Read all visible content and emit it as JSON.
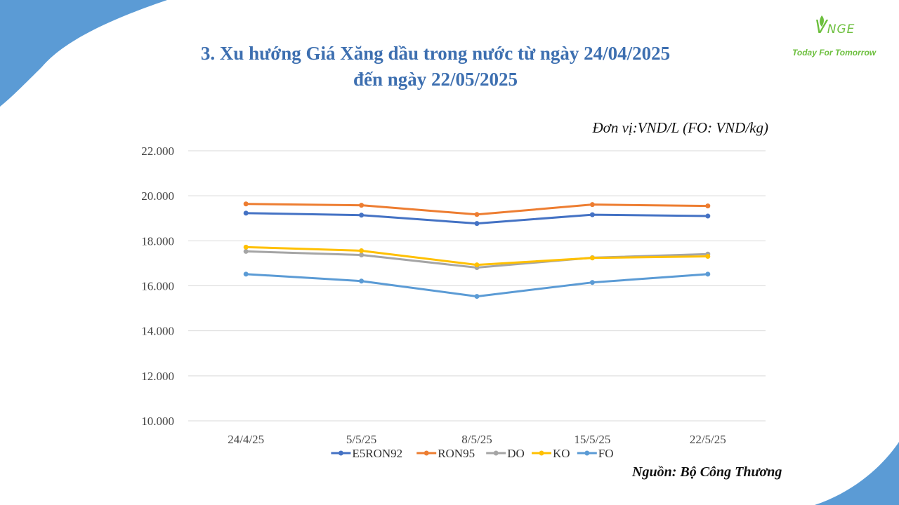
{
  "title_line1": "3. Xu hướng Giá Xăng dầu trong nước từ ngày 24/04/2025",
  "title_line2": "đến ngày 22/05/2025",
  "logo": {
    "brand_v": "V",
    "brand_rest": "NGE",
    "tagline": "Today For Tomorrow"
  },
  "unit_label": "Đơn vị:VND/L (FO: VND/kg)",
  "source_label": "Nguồn: Bộ Công Thương",
  "colors": {
    "title": "#3d6fb0",
    "deco_blue": "#5b9bd5",
    "brand_green": "#6cbf3d",
    "grid": "#d9d9d9"
  },
  "chart_data": {
    "type": "line",
    "categories": [
      "24/4/25",
      "5/5/25",
      "8/5/25",
      "15/5/25",
      "22/5/25"
    ],
    "ylim": [
      10000,
      22000
    ],
    "ytick_values": [
      10000,
      12000,
      14000,
      16000,
      18000,
      20000,
      22000
    ],
    "ytick_labels": [
      "10.000",
      "12.000",
      "14.000",
      "16.000",
      "18.000",
      "20.000",
      "22.000"
    ],
    "grid": true,
    "legend_position": "bottom",
    "series": [
      {
        "name": "E5RON92",
        "color": "#4472c4",
        "values": [
          19230,
          19140,
          18770,
          19160,
          19100
        ]
      },
      {
        "name": "RON95",
        "color": "#ed7d31",
        "values": [
          19640,
          19580,
          19170,
          19610,
          19550
        ]
      },
      {
        "name": "DO",
        "color": "#a5a5a5",
        "values": [
          17530,
          17370,
          16810,
          17250,
          17410
        ]
      },
      {
        "name": "KO",
        "color": "#ffc000",
        "values": [
          17720,
          17560,
          16930,
          17240,
          17310
        ]
      },
      {
        "name": "FO",
        "color": "#5b9bd5",
        "values": [
          16520,
          16210,
          15530,
          16150,
          16520
        ]
      }
    ]
  }
}
